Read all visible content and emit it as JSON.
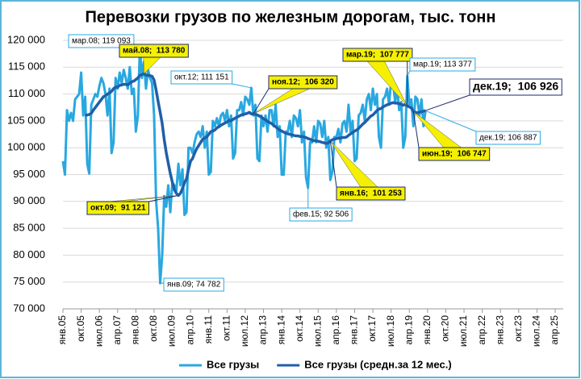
{
  "chart_data": {
    "type": "line",
    "title": "Перевозки грузов по железным дорогам, тыс. тонн",
    "categories": [
      "янв.05",
      null,
      null,
      null,
      null,
      null,
      null,
      null,
      null,
      "окт.05",
      null,
      null,
      null,
      null,
      null,
      null,
      null,
      null,
      "июл.06",
      null,
      null,
      null,
      null,
      null,
      null,
      null,
      null,
      "апр.07",
      null,
      null,
      null,
      null,
      null,
      null,
      null,
      null,
      "янв.08",
      null,
      null,
      null,
      null,
      null,
      null,
      null,
      null,
      "окт.08",
      null,
      null,
      null,
      null,
      null,
      null,
      null,
      null,
      "июл.09",
      null,
      null,
      null,
      null,
      null,
      null,
      null,
      null,
      "апр.10",
      null,
      null,
      null,
      null,
      null,
      null,
      null,
      null,
      "янв.11",
      null,
      null,
      null,
      null,
      null,
      null,
      null,
      null,
      "окт.11",
      null,
      null,
      null,
      null,
      null,
      null,
      null,
      null,
      "июл.12",
      null,
      null,
      null,
      null,
      null,
      null,
      null,
      null,
      "апр.13",
      null,
      null,
      null,
      null,
      null,
      null,
      null,
      null,
      "янв.14",
      null,
      null,
      null,
      null,
      null,
      null,
      null,
      null,
      "окт.14",
      null,
      null,
      null,
      null,
      null,
      null,
      null,
      null,
      "июл.15",
      null,
      null,
      null,
      null,
      null,
      null,
      null,
      null,
      "апр.16",
      null,
      null,
      null,
      null,
      null,
      null,
      null,
      null,
      "янв.17",
      null,
      null,
      null,
      null,
      null,
      null,
      null,
      null,
      "окт.17",
      null,
      null,
      null,
      null,
      null,
      null,
      null,
      null,
      "июл.18",
      null,
      null,
      null,
      null,
      null,
      null,
      null,
      null,
      "апр.19",
      null,
      null,
      null,
      null,
      null,
      null,
      null,
      null,
      "янв.20",
      null,
      null,
      null,
      null,
      null,
      null,
      null,
      null,
      "окт.20",
      null,
      null,
      null,
      null,
      null,
      null,
      null,
      null,
      "июл.21",
      null,
      null,
      null,
      null,
      null,
      null,
      null,
      null,
      "апр.22",
      null,
      null,
      null,
      null,
      null,
      null,
      null,
      null,
      "янв.23",
      null,
      null,
      null,
      null,
      null,
      null,
      null,
      null,
      "окт.23",
      null,
      null,
      null,
      null,
      null,
      null,
      null,
      null,
      "июл.24",
      null,
      null,
      null,
      null,
      null,
      null,
      null,
      null,
      "апр.25"
    ],
    "series": [
      {
        "name": "Все грузы",
        "color": "#29a8e0",
        "values": [
          97500,
          95000,
          107000,
          105000,
          106500,
          105000,
          109000,
          109500,
          110000,
          114000,
          106000,
          109500,
          97000,
          95200,
          108000,
          109000,
          110000,
          109500,
          111500,
          113000,
          112000,
          110000,
          106000,
          111000,
          99000,
          101000,
          113000,
          111000,
          114000,
          112000,
          114500,
          113000,
          111000,
          115000,
          110000,
          111000,
          103000,
          106000,
          119093,
          113000,
          116000,
          111000,
          114500,
          113000,
          112000,
          106000,
          90000,
          85000,
          74782,
          80000,
          91000,
          89000,
          93000,
          88000,
          93500,
          93000,
          92000,
          97000,
          93000,
          96000,
          87500,
          88000,
          100000,
          100000,
          99000,
          101000,
          102500,
          103000,
          102000,
          104000,
          100000,
          103000,
          95000,
          95500,
          105000,
          104000,
          105500,
          104000,
          106000,
          106500,
          105000,
          107000,
          104000,
          106000,
          98000,
          99000,
          107000,
          107000,
          108500,
          106000,
          109500,
          109000,
          108000,
          111151,
          106000,
          108000,
          98000,
          97500,
          106000,
          104000,
          106000,
          103000,
          107000,
          107000,
          104000,
          108000,
          102000,
          104000,
          95000,
          95000,
          103000,
          103000,
          105000,
          102000,
          106000,
          105500,
          104000,
          107000,
          101000,
          103000,
          94500,
          92506,
          101000,
          101000,
          104000,
          101000,
          105000,
          104500,
          102000,
          105000,
          100000,
          102000,
          94000,
          95500,
          102000,
          102000,
          103500,
          101000,
          104500,
          105000,
          103000,
          108000,
          103000,
          105000,
          97500,
          98000,
          106000,
          106500,
          108000,
          105000,
          109000,
          110000,
          107000,
          111000,
          108000,
          110000,
          102000,
          100000,
          109000,
          109500,
          111000,
          108000,
          112500,
          112000,
          108500,
          111000,
          107000,
          108500,
          100000,
          102000,
          113377,
          108000,
          109000,
          104000,
          109500,
          109000,
          106000,
          109000,
          104000,
          106887,
          null,
          null,
          null,
          null,
          null,
          null,
          null,
          null,
          null,
          null,
          null,
          null,
          null,
          null,
          null,
          null,
          null,
          null,
          null,
          null,
          null,
          null,
          null,
          null,
          null,
          null,
          null,
          null,
          null,
          null,
          null,
          null,
          null,
          null,
          null,
          null,
          null,
          null,
          null,
          null,
          null,
          null,
          null,
          null,
          null,
          null,
          null,
          null,
          null,
          null,
          null,
          null,
          null,
          null,
          null,
          null,
          null,
          null,
          null,
          null,
          null,
          null,
          null,
          null
        ]
      },
      {
        "name": "Все грузы (средн.за 12 мес.)",
        "color": "#1f5fa8",
        "values": [
          null,
          null,
          null,
          null,
          null,
          null,
          null,
          null,
          null,
          null,
          null,
          106000,
          106100,
          106200,
          106400,
          107000,
          107500,
          108000,
          108500,
          109000,
          109500,
          109700,
          110000,
          110200,
          110500,
          111000,
          111300,
          111300,
          111600,
          111700,
          111800,
          111800,
          111700,
          112000,
          112300,
          112400,
          112700,
          113000,
          113500,
          113600,
          113780,
          113500,
          113500,
          113400,
          113300,
          112600,
          110700,
          108600,
          106600,
          104500,
          101500,
          99100,
          97100,
          95200,
          93600,
          92200,
          91500,
          91121,
          91500,
          92400,
          93500,
          94200,
          96000,
          97500,
          98000,
          99000,
          99800,
          100400,
          101000,
          101600,
          101800,
          102000,
          102500,
          103000,
          103100,
          103300,
          103700,
          103900,
          104200,
          104400,
          104600,
          104800,
          105100,
          105000,
          105300,
          105500,
          105700,
          105900,
          106100,
          106200,
          106300,
          106400,
          106600,
          106300,
          106320,
          106200,
          106100,
          105900,
          105700,
          105400,
          105200,
          104900,
          104700,
          104500,
          104200,
          103900,
          103600,
          103300,
          103100,
          102900,
          102700,
          102600,
          102500,
          102400,
          102300,
          102200,
          102200,
          102100,
          102100,
          102000,
          101900,
          101700,
          101600,
          101400,
          101300,
          101300,
          101200,
          101100,
          101000,
          100900,
          100800,
          100900,
          101253,
          101500,
          101600,
          101700,
          101800,
          101800,
          101900,
          101900,
          102000,
          102300,
          102600,
          102800,
          103100,
          103300,
          103600,
          104000,
          104400,
          104700,
          105100,
          105500,
          105900,
          106100,
          106500,
          106900,
          107200,
          107300,
          107600,
          107800,
          108000,
          108100,
          108300,
          108400,
          108300,
          108300,
          108200,
          108100,
          107900,
          108100,
          107777,
          107600,
          107400,
          106747,
          106600,
          106500,
          106600,
          106700,
          106800,
          106926,
          null,
          null,
          null,
          null,
          null,
          null,
          null,
          null,
          null,
          null,
          null,
          null,
          null,
          null,
          null,
          null,
          null,
          null,
          null,
          null,
          null,
          null,
          null,
          null,
          null,
          null,
          null,
          null,
          null,
          null,
          null,
          null,
          null,
          null,
          null,
          null,
          null,
          null,
          null,
          null,
          null,
          null,
          null,
          null,
          null,
          null,
          null,
          null,
          null,
          null,
          null,
          null,
          null,
          null,
          null,
          null,
          null,
          null,
          null,
          null,
          null,
          null,
          null,
          null
        ]
      }
    ],
    "ylim": [
      70000,
      120000
    ],
    "yticks": [
      {
        "value": 70000,
        "label": "70 000"
      },
      {
        "value": 75000,
        "label": "75 000"
      },
      {
        "value": 80000,
        "label": "80 000"
      },
      {
        "value": 85000,
        "label": "85 000"
      },
      {
        "value": 90000,
        "label": "90 000"
      },
      {
        "value": 95000,
        "label": "95 000"
      },
      {
        "value": 100000,
        "label": "100 000"
      },
      {
        "value": 105000,
        "label": "105 000"
      },
      {
        "value": 110000,
        "label": "110 000"
      },
      {
        "value": 115000,
        "label": "115 000"
      },
      {
        "value": 120000,
        "label": "120 000"
      }
    ],
    "grid": true,
    "legend": "bottom",
    "annotations": [
      "мар.08; 119 093",
      "май.08;  113 780",
      "окт.12; 111 151",
      "ноя.12;  106 320",
      "мар.19;  107 777",
      "мар.19; 113 377",
      "дек.19;  106 926",
      "дек.19; 106 887",
      "июн.19;  106 747",
      "янв.16;  101 253",
      "фев.15; 92 506",
      "окт.09;  91 121",
      "янв.09; 74 782"
    ]
  }
}
